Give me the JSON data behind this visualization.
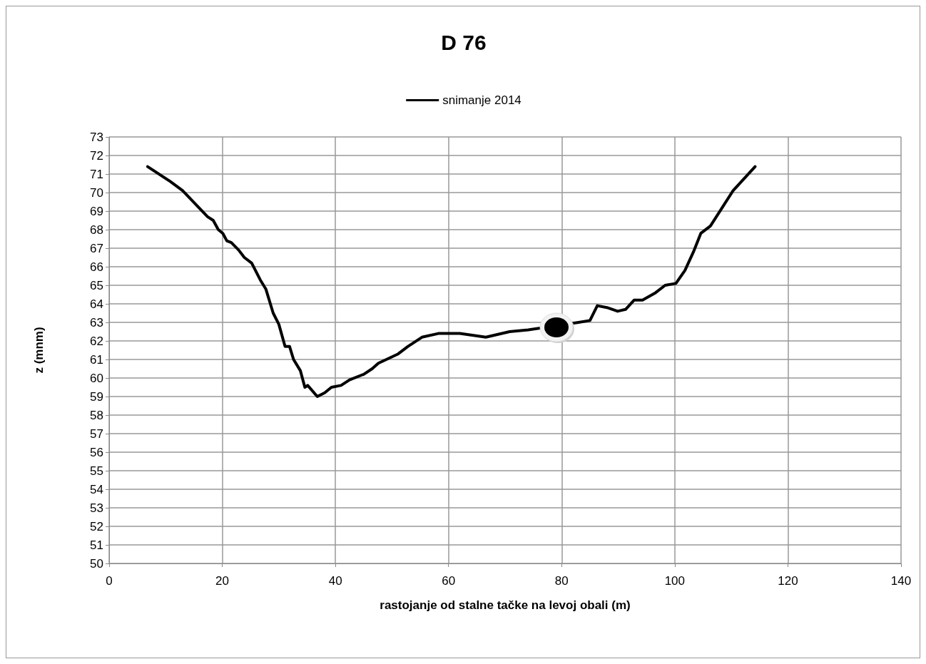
{
  "chart_data": {
    "type": "line",
    "title": "D 76",
    "xlabel": "rastojanje od stalne tačke na levoj obali (m)",
    "ylabel": "z (mnm)",
    "series": [
      {
        "name": "snimanje 2014",
        "color": "#000000",
        "x": [
          6.8,
          10.8,
          13.0,
          17.4,
          18.4,
          19.3,
          20.1,
          20.8,
          21.6,
          22.9,
          23.9,
          25.2,
          26.7,
          27.7,
          29.0,
          30.0,
          31.1,
          31.9,
          32.6,
          33.8,
          34.6,
          35.1,
          36.8,
          38.1,
          39.3,
          41.0,
          42.5,
          45.0,
          46.5,
          47.6,
          51.1,
          52.8,
          55.3,
          58.2,
          62.0,
          66.6,
          70.8,
          74.1,
          83.0,
          85.0,
          86.3,
          88.0,
          89.9,
          91.3,
          92.8,
          94.3,
          96.6,
          98.3,
          100.2,
          101.8,
          103.3,
          104.6,
          106.3,
          108.2,
          110.3,
          114.2
        ],
        "values": [
          71.4,
          70.6,
          70.1,
          68.7,
          68.5,
          68.0,
          67.8,
          67.4,
          67.3,
          66.9,
          66.5,
          66.2,
          65.3,
          64.8,
          63.5,
          62.9,
          61.7,
          61.7,
          61.0,
          60.4,
          59.5,
          59.6,
          59.0,
          59.2,
          59.5,
          59.6,
          59.9,
          60.2,
          60.5,
          60.8,
          61.3,
          61.7,
          62.2,
          62.4,
          62.4,
          62.2,
          62.5,
          62.6,
          63.0,
          63.1,
          63.9,
          63.8,
          63.6,
          63.7,
          64.2,
          64.2,
          64.6,
          65.0,
          65.1,
          65.8,
          66.8,
          67.8,
          68.2,
          69.1,
          70.1,
          71.4
        ]
      }
    ],
    "xlim": [
      0,
      140
    ],
    "xticks": [
      0,
      20,
      40,
      60,
      80,
      100,
      120,
      140
    ],
    "ylim": [
      50,
      73
    ],
    "yticks": [
      50,
      51,
      52,
      53,
      54,
      55,
      56,
      57,
      58,
      59,
      60,
      61,
      62,
      63,
      64,
      65,
      66,
      67,
      68,
      69,
      70,
      71,
      72,
      73
    ],
    "grid": true,
    "legend": "top",
    "marker": "none",
    "line_style": "solid"
  }
}
